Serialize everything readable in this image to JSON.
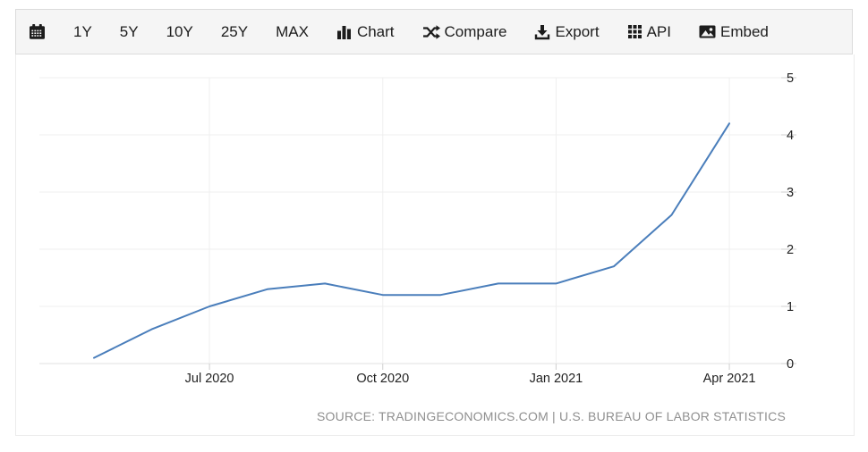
{
  "toolbar": {
    "calendar": {
      "icon": "calendar-icon"
    },
    "ranges": [
      {
        "label": "1Y"
      },
      {
        "label": "5Y"
      },
      {
        "label": "10Y"
      },
      {
        "label": "25Y"
      },
      {
        "label": "MAX"
      }
    ],
    "actions": [
      {
        "label": "Chart",
        "icon": "bar-chart-icon"
      },
      {
        "label": "Compare",
        "icon": "shuffle-icon"
      },
      {
        "label": "Export",
        "icon": "download-icon"
      },
      {
        "label": "API",
        "icon": "grid-icon"
      },
      {
        "label": "Embed",
        "icon": "image-icon"
      }
    ]
  },
  "chart_data": {
    "type": "line",
    "title": "",
    "x": [
      "May 2020",
      "Jun 2020",
      "Jul 2020",
      "Aug 2020",
      "Sep 2020",
      "Oct 2020",
      "Nov 2020",
      "Dec 2020",
      "Jan 2021",
      "Feb 2021",
      "Mar 2021",
      "Apr 2021"
    ],
    "values": [
      0.1,
      0.6,
      1.0,
      1.3,
      1.4,
      1.2,
      1.2,
      1.4,
      1.4,
      1.7,
      2.6,
      4.2
    ],
    "x_tick_labels": [
      "Jul 2020",
      "Oct 2020",
      "Jan 2021",
      "Apr 2021"
    ],
    "x_tick_indices": [
      2,
      5,
      8,
      11
    ],
    "y_ticks": [
      0,
      1,
      2,
      3,
      4,
      5
    ],
    "ylim": [
      0,
      5
    ],
    "grid": true,
    "legend": "none",
    "line_color": "#4a7ebb",
    "gridline_color": "#efefef",
    "baseline_color": "#e0e0e0",
    "tick_color": "#cfcfcf",
    "axis_label_color": "#222222",
    "source_text": "SOURCE: TRADINGECONOMICS.COM | U.S. BUREAU OF LABOR STATISTICS"
  }
}
